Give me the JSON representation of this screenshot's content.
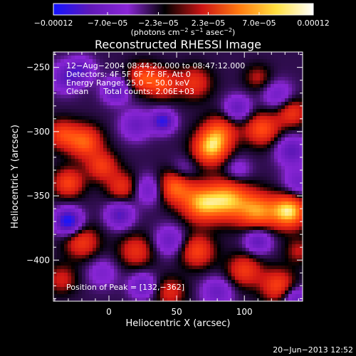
{
  "chart_data": {
    "type": "heatmap",
    "title": "Reconstructed RHESSI Image",
    "xlabel": "Heliocentric X (arcsec)",
    "ylabel": "Heliocentric Y (arcsec)",
    "xlim": [
      -41,
      143
    ],
    "ylim": [
      -432,
      -238
    ],
    "x_ticks": [
      0,
      50,
      100
    ],
    "x_tick_labels": [
      "0",
      "50",
      "100"
    ],
    "y_ticks": [
      -250,
      -300,
      -350,
      -400
    ],
    "y_tick_labels": [
      "−250",
      "−300",
      "−350",
      "−400"
    ],
    "colorbar": {
      "range": [
        -0.00012,
        0.00012
      ],
      "tick_values": [
        -0.00012,
        -7e-05,
        -2.3e-05,
        2.3e-05,
        7e-05,
        0.00012
      ],
      "tick_labels": [
        "−0.00012",
        "−7.0e−05",
        "−2.3e−05",
        "2.3e−05",
        "7.0e−05",
        "0.00012"
      ],
      "units_prefix": "(photons cm",
      "units_sup1": "−2",
      "units_mid1": " s",
      "units_sup2": "−1",
      "units_mid2": " asec",
      "units_sup3": "−2",
      "units_suffix": ")",
      "colors": [
        "#1414ff",
        "#6018b8",
        "#8a26d6",
        "#000000",
        "#cc1414",
        "#ff7a10",
        "#ffe040",
        "#ffffff"
      ]
    },
    "info": [
      "12−Aug−2004 08:44:20.000 to 08:47:12.000",
      "Detectors: 4F 5F 6F 7F 8F, Att 0",
      "Energy Range: 25.0 − 50.0 keV",
      "Clean      Total counts: 2.06E+03"
    ],
    "peak_label": "Position of Peak = [132,−362]",
    "blobs": [
      {
        "x": 133,
        "y": -362,
        "a": 1.0,
        "s": 9
      },
      {
        "x": 110,
        "y": -362,
        "a": 0.75,
        "s": 10
      },
      {
        "x": 88,
        "y": -353,
        "a": 0.85,
        "s": 11
      },
      {
        "x": 68,
        "y": -356,
        "a": 0.8,
        "s": 10
      },
      {
        "x": 48,
        "y": -343,
        "a": 0.7,
        "s": 9
      },
      {
        "x": 75,
        "y": -313,
        "a": 0.85,
        "s": 9
      },
      {
        "x": 82,
        "y": -300,
        "a": 0.55,
        "s": 9
      },
      {
        "x": 113,
        "y": -298,
        "a": 0.6,
        "s": 9
      },
      {
        "x": 135,
        "y": -285,
        "a": 0.5,
        "s": 8
      },
      {
        "x": 63,
        "y": -262,
        "a": 0.45,
        "s": 9
      },
      {
        "x": 40,
        "y": -263,
        "a": 0.5,
        "s": 8
      },
      {
        "x": 25,
        "y": -258,
        "a": 0.55,
        "s": 8
      },
      {
        "x": -18,
        "y": -308,
        "a": 0.65,
        "s": 9
      },
      {
        "x": -35,
        "y": -302,
        "a": 0.5,
        "s": 8
      },
      {
        "x": -30,
        "y": -340,
        "a": 0.55,
        "s": 8
      },
      {
        "x": -5,
        "y": -327,
        "a": 0.5,
        "s": 8
      },
      {
        "x": 10,
        "y": -343,
        "a": 0.45,
        "s": 8
      },
      {
        "x": 20,
        "y": -393,
        "a": 0.45,
        "s": 9
      },
      {
        "x": -20,
        "y": -386,
        "a": 0.5,
        "s": 9
      },
      {
        "x": 65,
        "y": -393,
        "a": 0.55,
        "s": 9
      },
      {
        "x": 100,
        "y": -408,
        "a": 0.5,
        "s": 9
      },
      {
        "x": 125,
        "y": -420,
        "a": 0.55,
        "s": 9
      },
      {
        "x": 45,
        "y": -425,
        "a": 0.4,
        "s": 8
      },
      {
        "x": 140,
        "y": -393,
        "a": 0.3,
        "s": 7
      },
      {
        "x": -35,
        "y": -415,
        "a": 0.35,
        "s": 8
      },
      {
        "x": 110,
        "y": -258,
        "a": 0.3,
        "s": 7
      },
      {
        "x": -32,
        "y": -258,
        "a": -0.5,
        "s": 8
      },
      {
        "x": -20,
        "y": -252,
        "a": -0.45,
        "s": 7
      },
      {
        "x": 5,
        "y": -268,
        "a": -0.55,
        "s": 7
      },
      {
        "x": 40,
        "y": -292,
        "a": -0.75,
        "s": 6
      },
      {
        "x": 20,
        "y": -295,
        "a": -0.45,
        "s": 8
      },
      {
        "x": 95,
        "y": -282,
        "a": -0.5,
        "s": 7
      },
      {
        "x": 125,
        "y": -272,
        "a": -0.4,
        "s": 8
      },
      {
        "x": 135,
        "y": -315,
        "a": -0.55,
        "s": 8
      },
      {
        "x": -30,
        "y": -370,
        "a": -0.9,
        "s": 7
      },
      {
        "x": 8,
        "y": -365,
        "a": -0.6,
        "s": 7
      },
      {
        "x": 30,
        "y": -345,
        "a": -0.45,
        "s": 8
      },
      {
        "x": 45,
        "y": -385,
        "a": -0.45,
        "s": 8
      },
      {
        "x": 25,
        "y": -420,
        "a": -0.5,
        "s": 7
      },
      {
        "x": 80,
        "y": -425,
        "a": -0.45,
        "s": 8
      },
      {
        "x": 138,
        "y": -430,
        "a": -0.5,
        "s": 7
      },
      {
        "x": 110,
        "y": -385,
        "a": -0.55,
        "s": 7
      },
      {
        "x": 140,
        "y": -340,
        "a": -0.4,
        "s": 8
      },
      {
        "x": 55,
        "y": -330,
        "a": -0.25,
        "s": 7
      },
      {
        "x": -5,
        "y": -410,
        "a": -0.3,
        "s": 8
      },
      {
        "x": 95,
        "y": -330,
        "a": -0.3,
        "s": 7
      }
    ]
  },
  "datestamp": "20−Jun−2013 12:52"
}
